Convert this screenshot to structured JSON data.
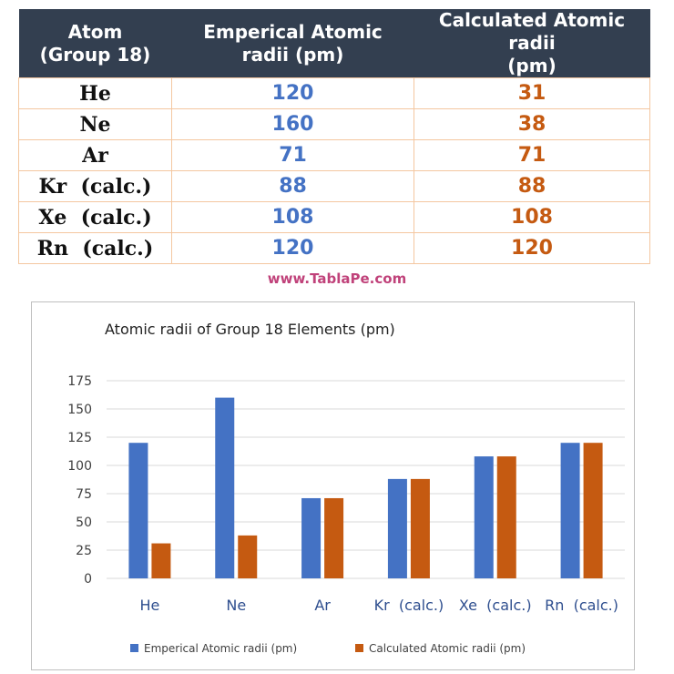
{
  "table": {
    "headers": [
      "Atom\n(Group 18)",
      "Emperical Atomic\nradii (pm)",
      "Calculated Atomic radii\n(pm)"
    ],
    "rows": [
      {
        "atom": "He",
        "empirical": "120",
        "calculated": "31"
      },
      {
        "atom": "Ne",
        "empirical": "160",
        "calculated": "38"
      },
      {
        "atom": "Ar",
        "empirical": "71",
        "calculated": "71"
      },
      {
        "atom": "Kr  (calc.)",
        "empirical": "88",
        "calculated": "88"
      },
      {
        "atom": "Xe  (calc.)",
        "empirical": "108",
        "calculated": "108"
      },
      {
        "atom": "Rn  (calc.)",
        "empirical": "120",
        "calculated": "120"
      }
    ]
  },
  "watermark": "www.TablaPe.com",
  "colors": {
    "empirical": "#4472c4",
    "calculated": "#c55a11",
    "header_bg": "#333f50",
    "watermark": "#c0427a"
  },
  "chart_data": {
    "type": "bar",
    "title": "Atomic radii of Group 18 Elements (pm)",
    "categories": [
      "He",
      "Ne",
      "Ar",
      "Kr  (calc.)",
      "Xe  (calc.)",
      "Rn  (calc.)"
    ],
    "series": [
      {
        "name": "Emperical Atomic radii (pm)",
        "values": [
          120,
          160,
          71,
          88,
          108,
          120
        ],
        "color": "#4472c4"
      },
      {
        "name": "Calculated Atomic radii (pm)",
        "values": [
          31,
          38,
          71,
          88,
          108,
          120
        ],
        "color": "#c55a11"
      }
    ],
    "ylim": [
      0,
      175
    ],
    "yticks": [
      0,
      25,
      50,
      75,
      100,
      125,
      150,
      175
    ],
    "grid": true,
    "legend": "bottom",
    "xlabel": "",
    "ylabel": ""
  }
}
